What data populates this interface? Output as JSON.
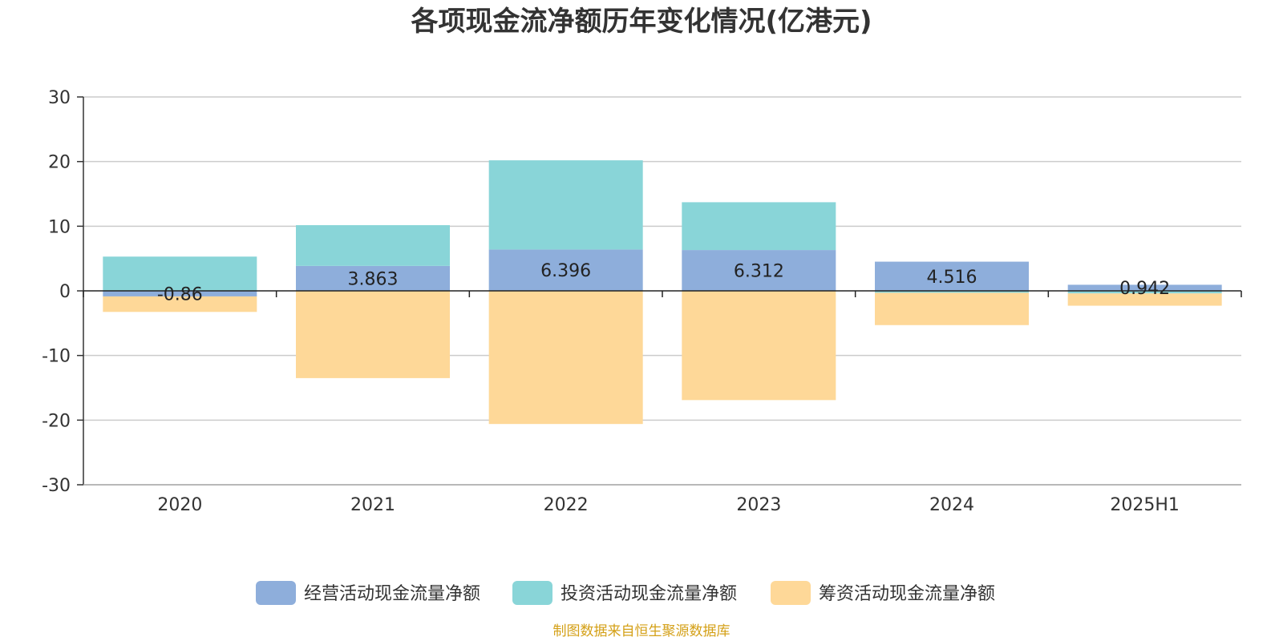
{
  "chart_data": {
    "type": "bar",
    "stacked": true,
    "title": "各项现金流净额历年变化情况(亿港元)",
    "categories": [
      "2020",
      "2021",
      "2022",
      "2023",
      "2024",
      "2025H1"
    ],
    "series": [
      {
        "name": "经营活动现金流量净额",
        "color": "#8eaedb",
        "values": [
          -0.86,
          3.863,
          6.396,
          6.312,
          4.516,
          0.942
        ],
        "labels": [
          "-0.86",
          "3.863",
          "6.396",
          "6.312",
          "4.516",
          "0.942"
        ]
      },
      {
        "name": "投资活动现金流量净额",
        "color": "#89d5d8",
        "values": [
          5.3,
          6.3,
          13.8,
          7.4,
          -0.3,
          -0.4
        ]
      },
      {
        "name": "筹资活动现金流量净额",
        "color": "#fed898",
        "values": [
          -2.4,
          -13.5,
          -20.6,
          -16.9,
          -5.0,
          -1.9
        ]
      }
    ],
    "ylim": [
      -30,
      30
    ],
    "yticks": [
      -30,
      -20,
      -10,
      0,
      10,
      20,
      30
    ],
    "grid": true,
    "legend_position": "bottom",
    "source_text": "制图数据来自恒生聚源数据库",
    "source_color": "#d4a017"
  }
}
